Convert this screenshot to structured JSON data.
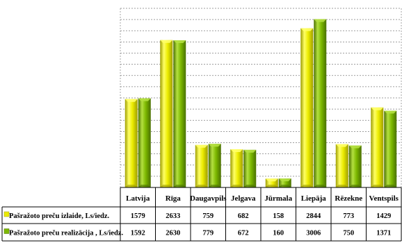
{
  "chart_data": {
    "type": "bar",
    "title": "",
    "xlabel": "",
    "ylabel": "",
    "ylim": [
      0,
      3200
    ],
    "grid": true,
    "legend": "table-left",
    "categories": [
      "Latvija",
      "Rīga",
      "Daugavpils",
      "Jelgava",
      "Jūrmala",
      "Liepāja",
      "Rēzekne",
      "Ventspils"
    ],
    "series": [
      {
        "name": "Pašražoto preču izlaide, Ls/iedz.",
        "values": [
          1579,
          2633,
          759,
          682,
          158,
          2844,
          773,
          1429
        ],
        "color": "#ecec00",
        "color_light": "#ffff66",
        "color_dark": "#9e9e00"
      },
      {
        "name": "Pašražoto preču realizācija , Ls/iedz.",
        "values": [
          1592,
          2630,
          779,
          672,
          160,
          3006,
          750,
          1371
        ],
        "color": "#7cb800",
        "color_light": "#b4e040",
        "color_dark": "#4a7000"
      }
    ]
  }
}
